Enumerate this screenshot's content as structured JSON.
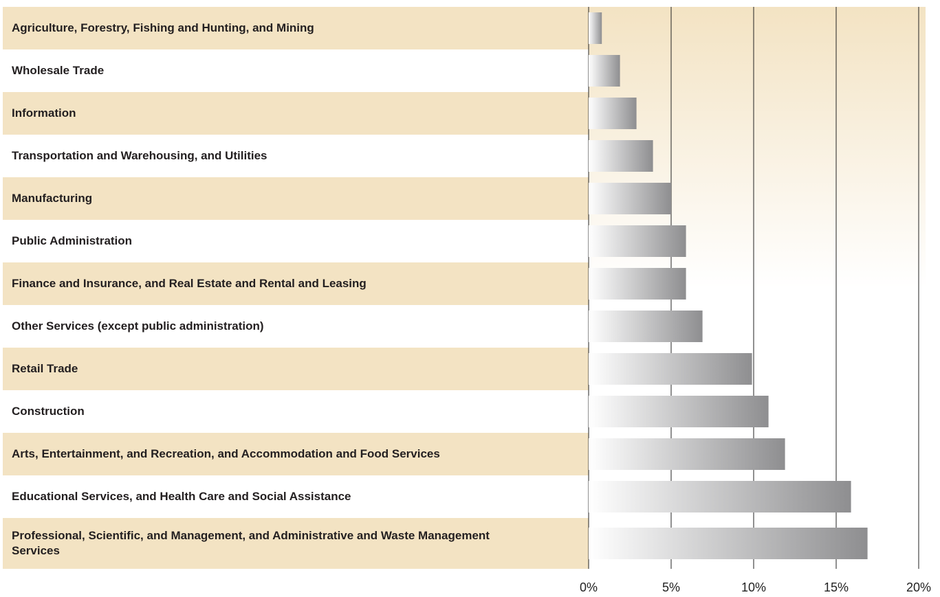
{
  "chart_data": {
    "type": "barh",
    "categories": [
      "Agriculture, Forestry, Fishing and Hunting, and Mining",
      "Wholesale Trade",
      "Information",
      "Transportation and Warehousing, and Utilities",
      "Manufacturing",
      "Public Administration",
      "Finance and Insurance, and Real Estate and Rental and Leasing",
      "Other Services (except public administration)",
      "Retail Trade",
      "Construction",
      "Arts, Entertainment, and Recreation, and Accommodation and Food Services",
      "Educational Services, and Health Care and Social Assistance",
      "Professional, Scientific, and Management, and Administrative and Waste Management Services"
    ],
    "values": [
      0.8,
      1.9,
      2.9,
      3.9,
      5.0,
      5.9,
      5.9,
      6.9,
      9.9,
      10.9,
      11.9,
      15.9,
      16.9
    ],
    "color": "#8e8e90",
    "xlim": [
      0,
      20
    ],
    "xticks": [
      {
        "value": 0,
        "label": "0%"
      },
      {
        "value": 5,
        "label": "5%"
      },
      {
        "value": 10,
        "label": "10%"
      },
      {
        "value": 15,
        "label": "15%"
      },
      {
        "value": 20,
        "label": "20%"
      }
    ],
    "grid": true
  }
}
